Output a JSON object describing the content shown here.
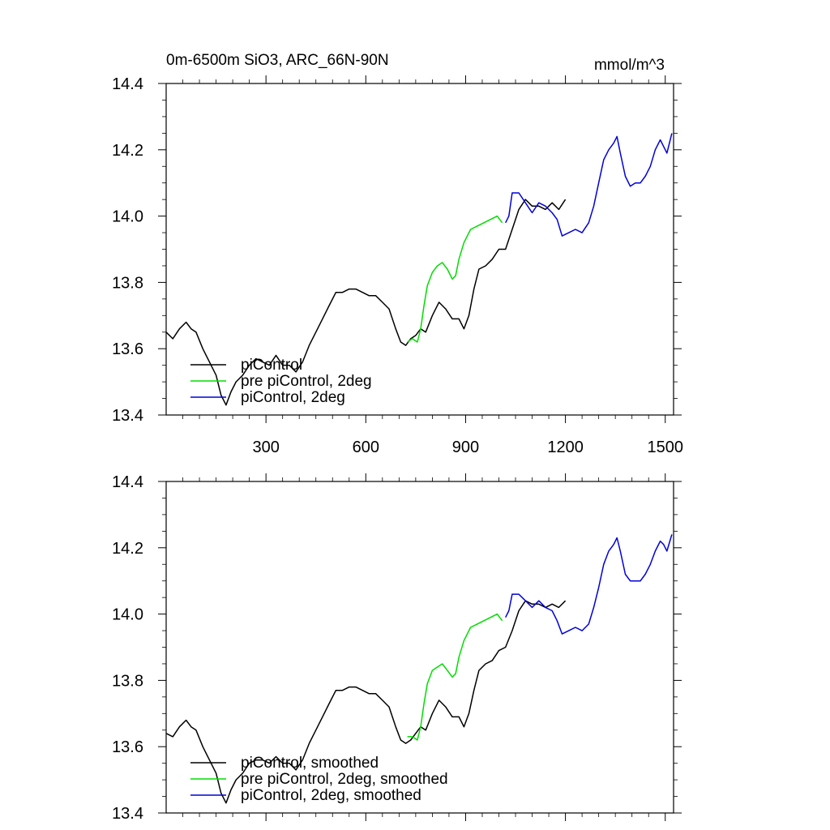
{
  "title_left": "0m-6500m SiO3, ARC_66N-90N",
  "title_right": "mmol/m^3",
  "colors": {
    "piControl": "#000000",
    "pre_piControl_2deg": "#00dd00",
    "piControl_2deg": "#0000dd"
  },
  "chart_data": [
    {
      "type": "line",
      "panel": "top",
      "xlim": [
        0,
        1525
      ],
      "ylim": [
        13.4,
        14.4
      ],
      "xticks": [
        300,
        600,
        900,
        1200,
        1500
      ],
      "xtick_labels": [
        "300",
        "600",
        "900",
        "1200",
        "1500"
      ],
      "yticks": [
        13.4,
        13.6,
        13.8,
        14.0,
        14.2,
        14.4
      ],
      "ytick_labels": [
        "13.4",
        "13.6",
        "13.8",
        "14.0",
        "14.2",
        "14.4"
      ],
      "legend": {
        "position": "bottom-left",
        "entries": [
          "piControl",
          "pre piControl, 2deg",
          "piControl, 2deg"
        ]
      },
      "series": [
        {
          "name": "piControl",
          "color": "#000000",
          "x": [
            0,
            20,
            40,
            60,
            75,
            90,
            110,
            130,
            150,
            165,
            180,
            195,
            210,
            230,
            250,
            270,
            290,
            310,
            330,
            350,
            370,
            390,
            410,
            430,
            450,
            470,
            490,
            510,
            530,
            550,
            570,
            590,
            610,
            630,
            650,
            670,
            690,
            705,
            720,
            735,
            750,
            765,
            780,
            800,
            820,
            840,
            860,
            880,
            895,
            910,
            925,
            940,
            960,
            980,
            1000,
            1020,
            1040,
            1060,
            1080,
            1100,
            1120,
            1140,
            1160,
            1180,
            1200
          ],
          "y": [
            13.65,
            13.63,
            13.66,
            13.68,
            13.66,
            13.65,
            13.6,
            13.56,
            13.52,
            13.46,
            13.43,
            13.47,
            13.5,
            13.52,
            13.55,
            13.57,
            13.56,
            13.55,
            13.58,
            13.55,
            13.55,
            13.53,
            13.56,
            13.61,
            13.65,
            13.69,
            13.73,
            13.77,
            13.77,
            13.78,
            13.78,
            13.77,
            13.76,
            13.76,
            13.74,
            13.72,
            13.66,
            13.62,
            13.61,
            13.63,
            13.64,
            13.66,
            13.65,
            13.7,
            13.74,
            13.72,
            13.69,
            13.69,
            13.66,
            13.7,
            13.78,
            13.84,
            13.85,
            13.87,
            13.9,
            13.9,
            13.96,
            14.02,
            14.05,
            14.03,
            14.03,
            14.02,
            14.04,
            14.02,
            14.05
          ]
        },
        {
          "name": "pre piControl, 2deg",
          "color": "#00dd00",
          "x": [
            725,
            740,
            755,
            765,
            775,
            785,
            800,
            815,
            830,
            845,
            860,
            870,
            880,
            895,
            915,
            935,
            955,
            975,
            995,
            1010
          ],
          "y": [
            13.62,
            13.63,
            13.62,
            13.66,
            13.73,
            13.79,
            13.83,
            13.85,
            13.86,
            13.84,
            13.81,
            13.82,
            13.87,
            13.92,
            13.96,
            13.97,
            13.98,
            13.99,
            14.0,
            13.98
          ]
        },
        {
          "name": "piControl, 2deg",
          "color": "#0000dd",
          "x": [
            1020,
            1030,
            1040,
            1060,
            1080,
            1100,
            1120,
            1140,
            1160,
            1175,
            1190,
            1210,
            1230,
            1250,
            1270,
            1285,
            1300,
            1315,
            1330,
            1345,
            1355,
            1365,
            1380,
            1395,
            1410,
            1425,
            1440,
            1455,
            1470,
            1485,
            1495,
            1505,
            1520
          ],
          "y": [
            13.98,
            14.0,
            14.07,
            14.07,
            14.04,
            14.01,
            14.04,
            14.03,
            14.01,
            13.99,
            13.94,
            13.95,
            13.96,
            13.95,
            13.98,
            14.03,
            14.1,
            14.17,
            14.2,
            14.22,
            14.24,
            14.19,
            14.12,
            14.09,
            14.1,
            14.1,
            14.12,
            14.15,
            14.2,
            14.23,
            14.21,
            14.19,
            14.25
          ]
        }
      ]
    },
    {
      "type": "line",
      "panel": "bottom",
      "xlim": [
        0,
        1525
      ],
      "ylim": [
        13.4,
        14.4
      ],
      "xticks": [
        300,
        600,
        900,
        1200,
        1500
      ],
      "xtick_labels": [
        "",
        "",
        "",
        "",
        ""
      ],
      "yticks": [
        13.4,
        13.6,
        13.8,
        14.0,
        14.2,
        14.4
      ],
      "ytick_labels": [
        "13.4",
        "13.6",
        "13.8",
        "14.0",
        "14.2",
        "14.4"
      ],
      "legend": {
        "position": "bottom-left",
        "entries": [
          "piControl, smoothed",
          "pre piControl, 2deg, smoothed",
          "piControl, 2deg, smoothed"
        ]
      },
      "series": [
        {
          "name": "piControl, smoothed",
          "color": "#000000",
          "x": [
            0,
            20,
            40,
            60,
            75,
            90,
            110,
            130,
            150,
            165,
            180,
            195,
            210,
            230,
            250,
            270,
            290,
            310,
            330,
            350,
            370,
            390,
            410,
            430,
            450,
            470,
            490,
            510,
            530,
            550,
            570,
            590,
            610,
            630,
            650,
            670,
            690,
            705,
            720,
            735,
            750,
            765,
            780,
            800,
            820,
            840,
            860,
            880,
            895,
            910,
            925,
            940,
            960,
            980,
            1000,
            1020,
            1040,
            1060,
            1080,
            1100,
            1120,
            1140,
            1160,
            1180,
            1200
          ],
          "y": [
            13.64,
            13.63,
            13.66,
            13.68,
            13.66,
            13.65,
            13.6,
            13.56,
            13.52,
            13.46,
            13.43,
            13.47,
            13.5,
            13.52,
            13.55,
            13.56,
            13.56,
            13.55,
            13.57,
            13.55,
            13.55,
            13.53,
            13.56,
            13.61,
            13.65,
            13.69,
            13.73,
            13.77,
            13.77,
            13.78,
            13.78,
            13.77,
            13.76,
            13.76,
            13.74,
            13.72,
            13.66,
            13.62,
            13.61,
            13.62,
            13.64,
            13.66,
            13.65,
            13.7,
            13.74,
            13.72,
            13.69,
            13.69,
            13.66,
            13.7,
            13.77,
            13.83,
            13.85,
            13.86,
            13.89,
            13.9,
            13.95,
            14.01,
            14.04,
            14.03,
            14.03,
            14.02,
            14.03,
            14.02,
            14.04
          ]
        },
        {
          "name": "pre piControl, 2deg, smoothed",
          "color": "#00dd00",
          "x": [
            725,
            740,
            755,
            765,
            775,
            785,
            800,
            815,
            830,
            845,
            860,
            870,
            880,
            895,
            915,
            935,
            955,
            975,
            995,
            1010
          ],
          "y": [
            13.63,
            13.63,
            13.62,
            13.66,
            13.73,
            13.79,
            13.83,
            13.84,
            13.85,
            13.83,
            13.81,
            13.82,
            13.87,
            13.92,
            13.96,
            13.97,
            13.98,
            13.99,
            14.0,
            13.98
          ]
        },
        {
          "name": "piControl, 2deg, smoothed",
          "color": "#0000dd",
          "x": [
            1020,
            1030,
            1040,
            1060,
            1080,
            1100,
            1120,
            1140,
            1160,
            1175,
            1190,
            1210,
            1230,
            1250,
            1270,
            1285,
            1300,
            1315,
            1330,
            1345,
            1355,
            1365,
            1380,
            1395,
            1410,
            1425,
            1440,
            1455,
            1470,
            1485,
            1495,
            1505,
            1520
          ],
          "y": [
            13.99,
            14.01,
            14.06,
            14.06,
            14.04,
            14.02,
            14.04,
            14.02,
            14.01,
            13.98,
            13.94,
            13.95,
            13.96,
            13.95,
            13.97,
            14.02,
            14.08,
            14.15,
            14.19,
            14.21,
            14.23,
            14.19,
            14.12,
            14.1,
            14.1,
            14.1,
            14.12,
            14.15,
            14.19,
            14.22,
            14.21,
            14.19,
            14.24
          ]
        }
      ]
    }
  ]
}
